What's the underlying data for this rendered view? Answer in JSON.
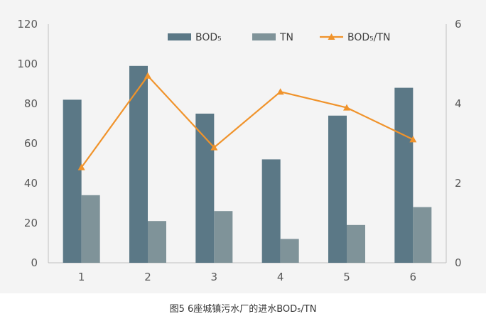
{
  "chart_data": {
    "type": "bar",
    "categories": [
      "1",
      "2",
      "3",
      "4",
      "5",
      "6"
    ],
    "series": [
      {
        "name": "BOD₅",
        "kind": "bar",
        "axis": "left",
        "color": "#5b7886",
        "values": [
          82,
          99,
          75,
          52,
          74,
          88
        ]
      },
      {
        "name": "TN",
        "kind": "bar",
        "axis": "left",
        "color": "#7f9399",
        "values": [
          34,
          21,
          26,
          12,
          19,
          28
        ]
      },
      {
        "name": "BOD₅/TN",
        "kind": "line",
        "marker": "triangle",
        "axis": "right",
        "color": "#f0932b",
        "values": [
          2.4,
          4.7,
          2.9,
          4.3,
          3.9,
          3.1
        ]
      }
    ],
    "y_left": {
      "min": 0,
      "max": 120,
      "ticks": [
        0,
        20,
        40,
        60,
        80,
        100,
        120
      ]
    },
    "y_right": {
      "min": 0,
      "max": 6,
      "ticks": [
        0,
        2,
        4,
        6
      ]
    },
    "grid": false,
    "legend_position": "top-right"
  },
  "caption": "图5 6座城镇污水厂的进水BOD₅/TN"
}
